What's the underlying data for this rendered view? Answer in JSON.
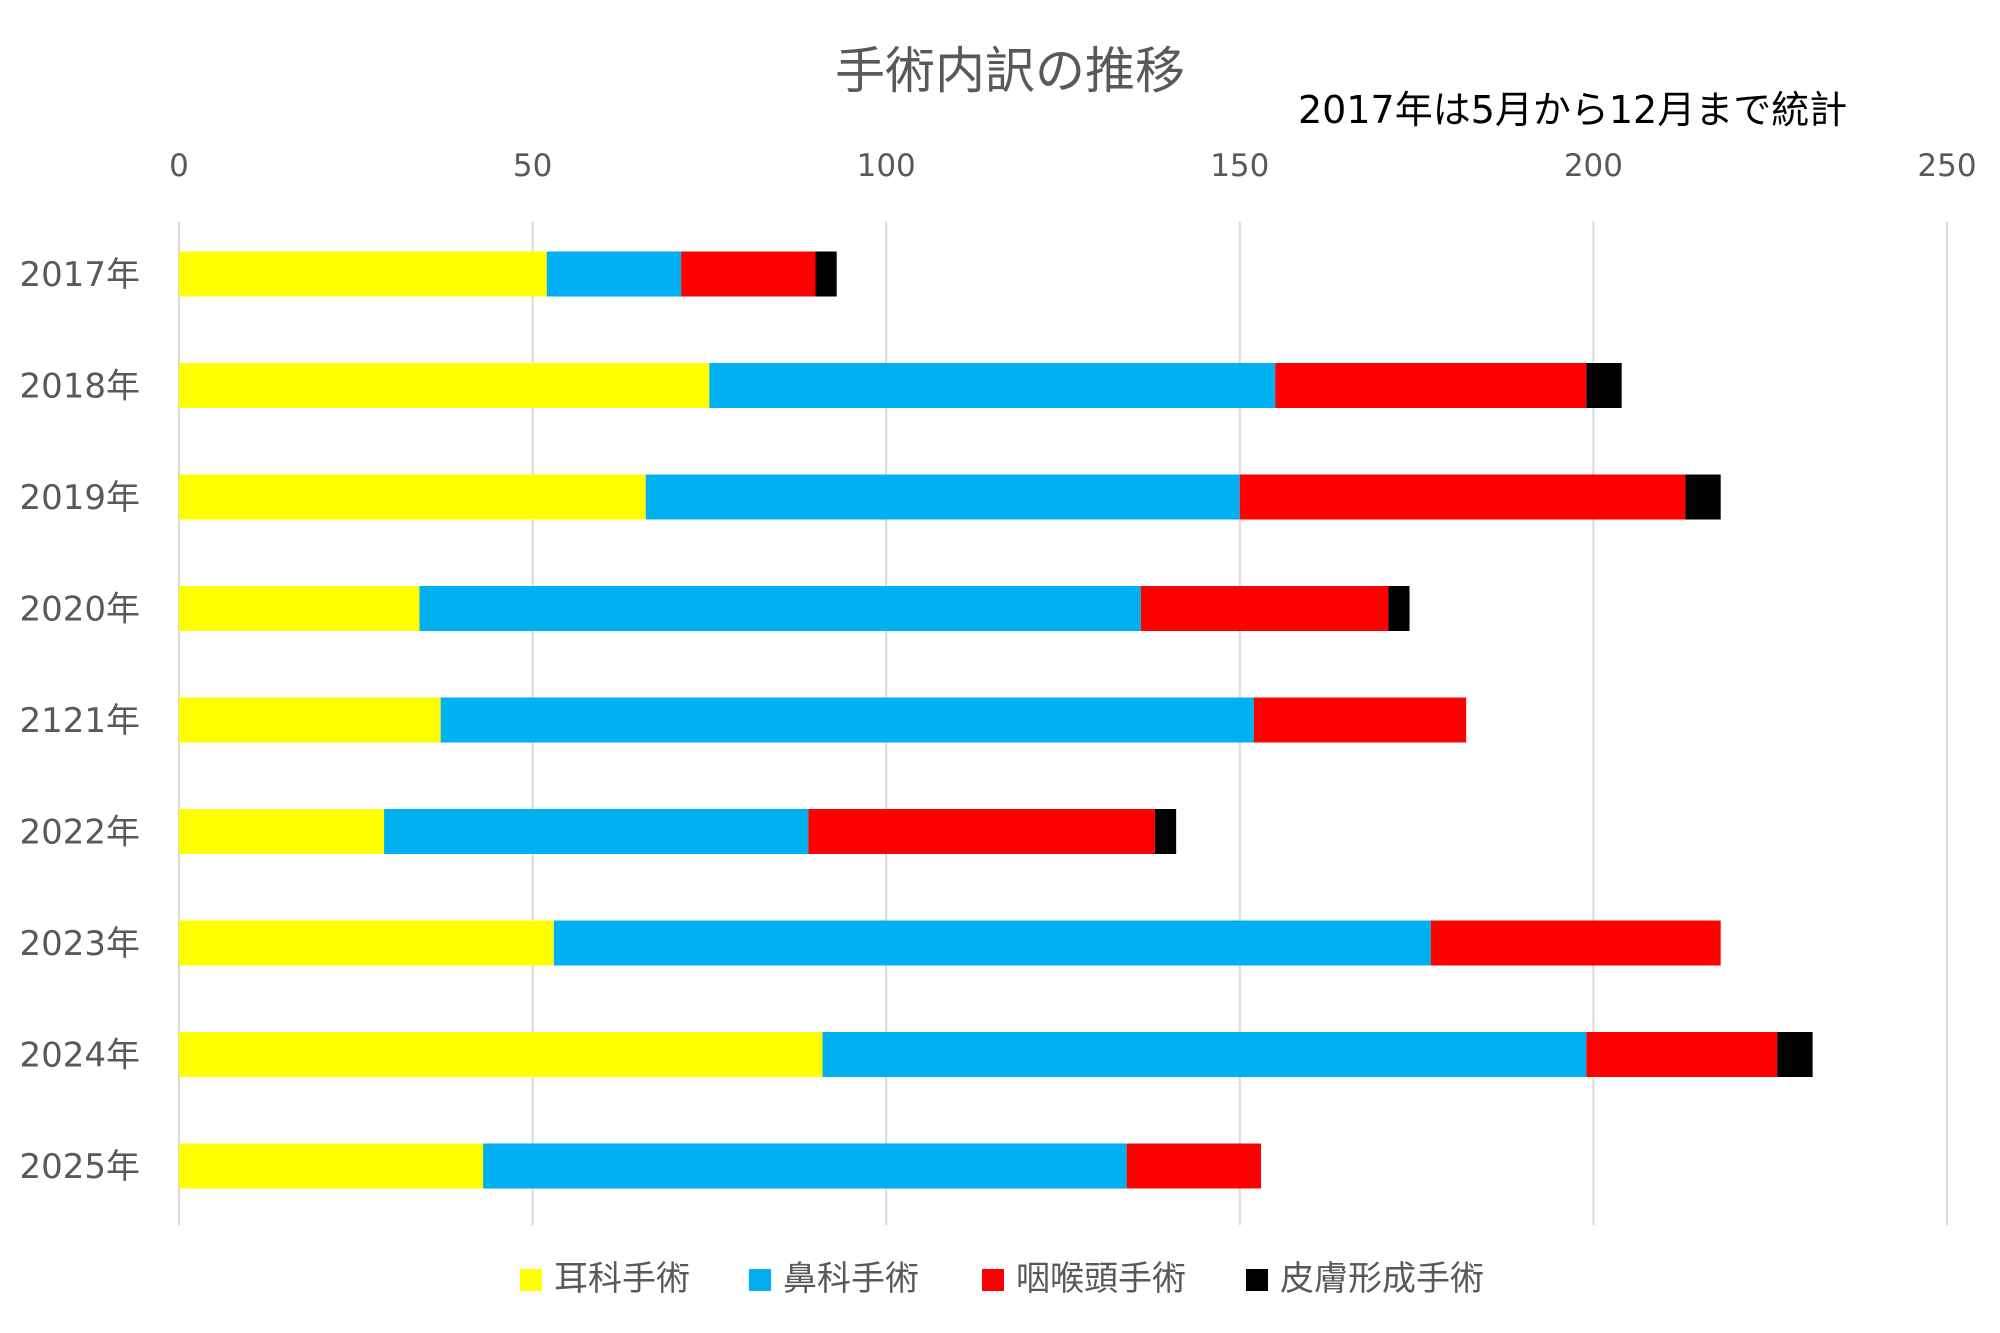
{
  "chart_data": {
    "type": "bar",
    "orientation": "horizontal",
    "stacked": true,
    "title": "手術内訳の推移",
    "annotation": "2017年は5月から12月まで統計",
    "categories": [
      "2017年",
      "2018年",
      "2019年",
      "2020年",
      "2121年",
      "2022年",
      "2023年",
      "2024年",
      "2025年"
    ],
    "series": [
      {
        "name": "耳科手術",
        "color": "#ffff00",
        "values": [
          52,
          75,
          66,
          34,
          37,
          29,
          53,
          91,
          43
        ]
      },
      {
        "name": "鼻科手術",
        "color": "#00b0f0",
        "values": [
          19,
          80,
          84,
          102,
          115,
          60,
          124,
          108,
          91
        ]
      },
      {
        "name": "咽喉頭手術",
        "color": "#ff0000",
        "values": [
          19,
          44,
          63,
          35,
          30,
          49,
          41,
          27,
          19
        ]
      },
      {
        "name": "皮膚形成手術",
        "color": "#000000",
        "values": [
          3,
          5,
          5,
          3,
          0,
          3,
          0,
          5,
          0
        ]
      }
    ],
    "xlim": [
      0,
      250
    ],
    "xticks": [
      "0",
      "50",
      "100",
      "150",
      "200",
      "250"
    ],
    "x_axis_position": "top",
    "grid": true,
    "legend_position": "bottom"
  }
}
